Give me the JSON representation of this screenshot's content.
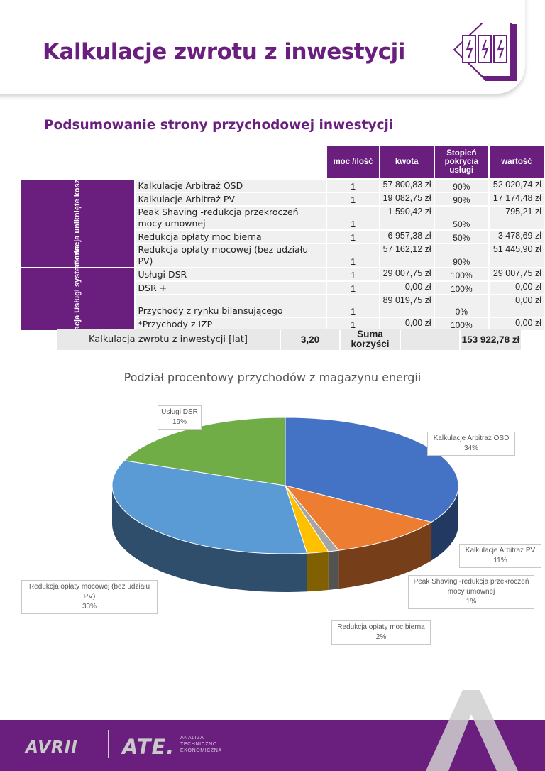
{
  "header": {
    "title": "Kalkulacje zwrotu z inwestycji",
    "logo_icon": "lightning-panels-icon"
  },
  "section": {
    "title": "Podsumowanie strony przychodowej inwestycji"
  },
  "table": {
    "columns": [
      "moc /ilość",
      "kwota",
      "Stopień pokrycia usługi",
      "wartość"
    ],
    "groups": [
      {
        "label": "Kalkulacja uniknięte koszty"
      },
      {
        "label": "Kalkulacja Usługi systemowe"
      }
    ],
    "rows": [
      {
        "label": "Kalkulacje Arbitraż OSD",
        "qty": "1",
        "amount": "57 800,83 zł",
        "coverage": "90%",
        "value": "52 020,74 zł"
      },
      {
        "label": "Kalkulacje Arbitraż PV",
        "qty": "1",
        "amount": "19 082,75 zł",
        "coverage": "90%",
        "value": "17 174,48 zł"
      },
      {
        "label": "Peak Shaving -redukcja przekroczeń mocy umownej",
        "qty": "1",
        "amount": "1 590,42 zł",
        "coverage": "50%",
        "value": "795,21 zł"
      },
      {
        "label": "Redukcja opłaty moc bierna",
        "qty": "1",
        "amount": "6 957,38 zł",
        "coverage": "50%",
        "value": "3 478,69 zł"
      },
      {
        "label": "Redukcja opłaty mocowej (bez udziału PV)",
        "qty": "1",
        "amount": "57 162,12 zł",
        "coverage": "90%",
        "value": "51 445,90 zł"
      },
      {
        "label": "Usługi DSR",
        "qty": "1",
        "amount": "29 007,75 zł",
        "coverage": "100%",
        "value": "29 007,75 zł"
      },
      {
        "label": "DSR +",
        "qty": "1",
        "amount": "0,00 zł",
        "coverage": "100%",
        "value": "0,00 zł"
      },
      {
        "label": "Przychody z rynku bilansującego",
        "qty": "1",
        "amount": "89 019,75 zł",
        "coverage": "0%",
        "value": "0,00 zł"
      },
      {
        "label": "*Przychody z IZP",
        "qty": "1",
        "amount": "0,00 zł",
        "coverage": "100%",
        "value": "0,00 zł"
      }
    ]
  },
  "summary": {
    "label": "Kalkulacja zwrotu z inwestycji [lat]",
    "years": "3,20",
    "sum_label": "Suma korzyści",
    "total": "153 922,78 zł"
  },
  "chart_data": {
    "type": "pie",
    "title": "Podział procentowy przychodów z magazynu energii",
    "slices": [
      {
        "name": "Kalkulacje Arbitraż OSD",
        "value": 34,
        "label": "34%",
        "color": "#4472c4"
      },
      {
        "name": "Kalkulacje Arbitraż PV",
        "value": 11,
        "label": "11%",
        "color": "#ed7d31"
      },
      {
        "name": "Peak Shaving -redukcja przekroczeń mocy umownej",
        "value": 1,
        "label": "1%",
        "color": "#a5a5a5"
      },
      {
        "name": "Redukcja opłaty moc bierna",
        "value": 2,
        "label": "2%",
        "color": "#ffc000"
      },
      {
        "name": "Redukcja opłaty mocowej (bez udziału PV)",
        "value": 33,
        "label": "33%",
        "color": "#5b9bd5"
      },
      {
        "name": "Usługi DSR",
        "value": 19,
        "label": "19%",
        "color": "#70ad47"
      }
    ]
  },
  "footer": {
    "brand": "AVRII",
    "partner": "ATE.",
    "partner_sub": [
      "ANALIZA",
      "TECHNICZNO",
      "EKONOMICZNA"
    ]
  },
  "colors": {
    "brand": "#6a1f7e"
  }
}
